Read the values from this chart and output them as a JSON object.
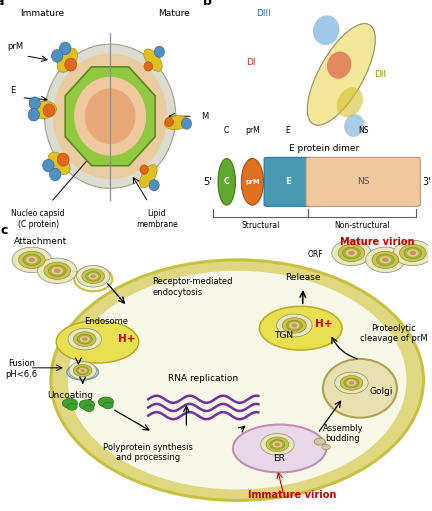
{
  "bg_color": "#ffffff",
  "panel_a_label": "a",
  "panel_b_label": "b",
  "panel_c_label": "c",
  "immature_label": "Immature",
  "mature_label": "Mature",
  "prM_label": "prM",
  "E_label": "E",
  "M_label": "M",
  "nucleocapsid_label": "Nucleo capsid\n(C protein)",
  "lipid_label": "Lipid\nmembrane",
  "e_protein_dimer_label": "E protein dimer",
  "DI_label": "DI",
  "DII_label": "DII",
  "DIII_label": "DIII",
  "C_label": "C",
  "prM_bar_label": "prM",
  "E_bar_label": "E",
  "NS_label": "NS",
  "five_prime": "5'",
  "three_prime": "3'",
  "structural_label": "Structural",
  "nonstructural_label": "Non-structural",
  "orf_label": "ORF",
  "attachment_label": "Attachment",
  "endocytosis_label": "Receptor-mediated\nendocytosis",
  "endosome_label": "Endosome",
  "fusion_label": "Fusion\npH<6.6",
  "uncoating_label": "Uncoating",
  "rna_replication_label": "RNA replication",
  "polyprotein_label": "Polyprotein synthesis\nand processing",
  "er_label": "ER",
  "assembly_label": "Assembly\nbudding",
  "golgi_label": "Golgi",
  "proteolytic_label": "Proteolytic\ncleavage of prM",
  "tgn_label": "TGN",
  "release_label": "Release",
  "mature_virion_label": "Mature virion",
  "immature_virion_label": "Immature virion",
  "hplus_label": "H+",
  "red_text": "#cc0000",
  "cell_fill": "#f5f5dc",
  "cell_border": "#d4c850",
  "endo_fill": "#e8e050",
  "endo_border": "#c0b020",
  "er_fill": "#e8d8e8",
  "er_border": "#c090b0",
  "golgi_fill": "#e8e0b0",
  "golgi_border": "#b0a050",
  "tgn_fill": "#e8e050",
  "tgn_border": "#c0b020",
  "rna_color": "#7030a0",
  "green_ribo": "#4a9a30"
}
